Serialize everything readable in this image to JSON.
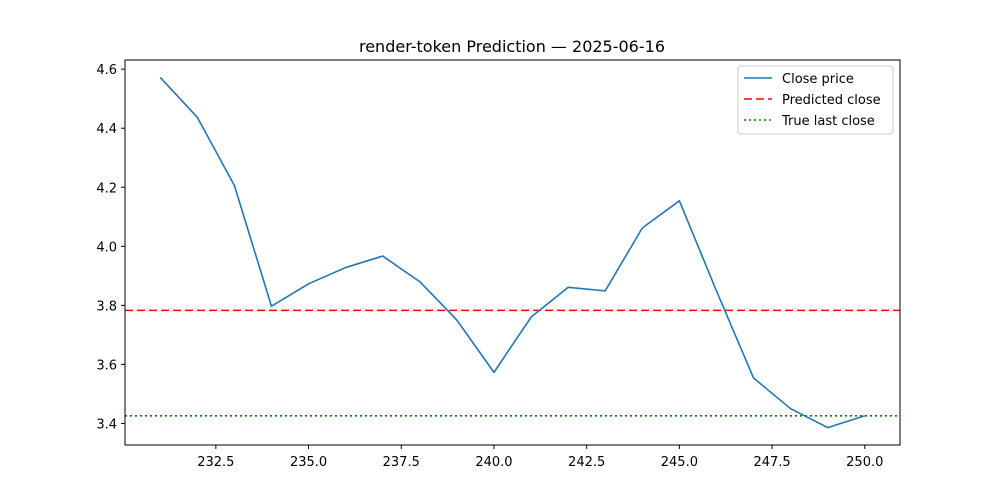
{
  "chart_data": {
    "type": "line",
    "title": "render-token Prediction — 2025-06-16",
    "xlabel": "",
    "ylabel": "",
    "xlim": [
      230.05,
      250.95
    ],
    "ylim": [
      3.327,
      4.631
    ],
    "x_ticks": [
      232.5,
      235.0,
      237.5,
      240.0,
      242.5,
      245.0,
      247.5,
      250.0
    ],
    "x_tick_labels": [
      "232.5",
      "235.0",
      "237.5",
      "240.0",
      "242.5",
      "245.0",
      "247.5",
      "250.0"
    ],
    "y_ticks": [
      3.4,
      3.6,
      3.8,
      4.0,
      4.2,
      4.4,
      4.6
    ],
    "y_tick_labels": [
      "3.4",
      "3.6",
      "3.8",
      "4.0",
      "4.2",
      "4.4",
      "4.6"
    ],
    "grid": false,
    "legend_position": "top-right",
    "series": [
      {
        "name": "Close price",
        "style": "solid",
        "color": "#1f77b4",
        "x": [
          231,
          232,
          233,
          234,
          235,
          236,
          237,
          238,
          239,
          240,
          241,
          242,
          243,
          244,
          245,
          246,
          247,
          248,
          249,
          250
        ],
        "values": [
          4.572,
          4.437,
          4.206,
          3.797,
          3.873,
          3.928,
          3.967,
          3.88,
          3.75,
          3.573,
          3.76,
          3.861,
          3.849,
          4.062,
          4.154,
          3.849,
          3.554,
          3.45,
          3.386,
          3.426
        ]
      }
    ],
    "hlines": [
      {
        "name": "Predicted close",
        "value": 3.783,
        "style": "dashed",
        "color": "#ff0000"
      },
      {
        "name": "True last close",
        "value": 3.426,
        "style": "dotted",
        "color": "#008000"
      }
    ]
  }
}
